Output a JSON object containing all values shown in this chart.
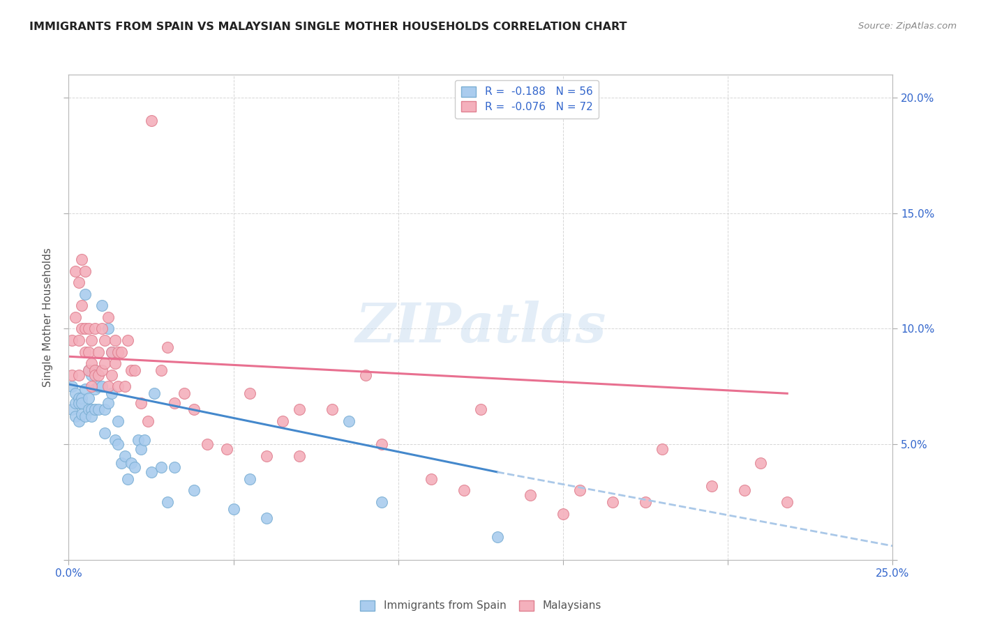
{
  "title": "IMMIGRANTS FROM SPAIN VS MALAYSIAN SINGLE MOTHER HOUSEHOLDS CORRELATION CHART",
  "source": "Source: ZipAtlas.com",
  "ylabel": "Single Mother Households",
  "xlim": [
    0.0,
    0.25
  ],
  "ylim": [
    0.0,
    0.21
  ],
  "ytick_values": [
    0.0,
    0.05,
    0.1,
    0.15,
    0.2
  ],
  "xtick_values": [
    0.0,
    0.05,
    0.1,
    0.15,
    0.2,
    0.25
  ],
  "legend_label_spain": "R =  -0.188   N = 56",
  "legend_label_malaysia": "R =  -0.076   N = 72",
  "bottom_label_spain": "Immigrants from Spain",
  "bottom_label_malaysia": "Malaysians",
  "watermark_text": "ZIPatlas",
  "background_color": "#ffffff",
  "grid_color": "#cccccc",
  "spain_scatter_color": "#7bafd4",
  "spain_scatter_fill": "#aaccee",
  "malaysia_scatter_color": "#e08090",
  "malaysia_scatter_fill": "#f4b0bc",
  "spain_line_color": "#4488cc",
  "malaysia_line_color": "#e87090",
  "dash_line_color": "#aac8e8",
  "spain_x": [
    0.001,
    0.001,
    0.002,
    0.002,
    0.002,
    0.003,
    0.003,
    0.003,
    0.004,
    0.004,
    0.004,
    0.005,
    0.005,
    0.005,
    0.006,
    0.006,
    0.006,
    0.007,
    0.007,
    0.007,
    0.008,
    0.008,
    0.008,
    0.009,
    0.009,
    0.01,
    0.01,
    0.011,
    0.011,
    0.012,
    0.012,
    0.013,
    0.013,
    0.014,
    0.015,
    0.015,
    0.016,
    0.017,
    0.018,
    0.019,
    0.02,
    0.021,
    0.022,
    0.023,
    0.025,
    0.026,
    0.028,
    0.03,
    0.032,
    0.038,
    0.05,
    0.055,
    0.06,
    0.085,
    0.095,
    0.13
  ],
  "spain_y": [
    0.075,
    0.065,
    0.072,
    0.068,
    0.062,
    0.07,
    0.06,
    0.068,
    0.07,
    0.063,
    0.068,
    0.115,
    0.074,
    0.062,
    0.082,
    0.065,
    0.07,
    0.08,
    0.065,
    0.062,
    0.082,
    0.074,
    0.065,
    0.075,
    0.065,
    0.11,
    0.075,
    0.065,
    0.055,
    0.1,
    0.068,
    0.09,
    0.072,
    0.052,
    0.06,
    0.05,
    0.042,
    0.045,
    0.035,
    0.042,
    0.04,
    0.052,
    0.048,
    0.052,
    0.038,
    0.072,
    0.04,
    0.025,
    0.04,
    0.03,
    0.022,
    0.035,
    0.018,
    0.06,
    0.025,
    0.01
  ],
  "malaysia_x": [
    0.001,
    0.001,
    0.002,
    0.002,
    0.003,
    0.003,
    0.003,
    0.004,
    0.004,
    0.004,
    0.005,
    0.005,
    0.005,
    0.006,
    0.006,
    0.006,
    0.007,
    0.007,
    0.007,
    0.008,
    0.008,
    0.008,
    0.009,
    0.009,
    0.01,
    0.01,
    0.011,
    0.011,
    0.012,
    0.012,
    0.013,
    0.013,
    0.014,
    0.014,
    0.015,
    0.015,
    0.016,
    0.017,
    0.018,
    0.019,
    0.02,
    0.022,
    0.024,
    0.025,
    0.028,
    0.03,
    0.032,
    0.035,
    0.038,
    0.042,
    0.048,
    0.055,
    0.06,
    0.065,
    0.07,
    0.08,
    0.09,
    0.11,
    0.125,
    0.14,
    0.155,
    0.165,
    0.18,
    0.195,
    0.21,
    0.218,
    0.205,
    0.175,
    0.15,
    0.12,
    0.095,
    0.07
  ],
  "malaysia_y": [
    0.095,
    0.08,
    0.125,
    0.105,
    0.12,
    0.095,
    0.08,
    0.13,
    0.11,
    0.1,
    0.125,
    0.1,
    0.09,
    0.1,
    0.09,
    0.082,
    0.095,
    0.085,
    0.075,
    0.1,
    0.082,
    0.08,
    0.09,
    0.08,
    0.1,
    0.082,
    0.085,
    0.095,
    0.105,
    0.075,
    0.09,
    0.08,
    0.095,
    0.085,
    0.09,
    0.075,
    0.09,
    0.075,
    0.095,
    0.082,
    0.082,
    0.068,
    0.06,
    0.19,
    0.082,
    0.092,
    0.068,
    0.072,
    0.065,
    0.05,
    0.048,
    0.072,
    0.045,
    0.06,
    0.045,
    0.065,
    0.08,
    0.035,
    0.065,
    0.028,
    0.03,
    0.025,
    0.048,
    0.032,
    0.042,
    0.025,
    0.03,
    0.025,
    0.02,
    0.03,
    0.05,
    0.065
  ],
  "spain_line_x0": 0.0,
  "spain_line_x1": 0.13,
  "spain_line_y0": 0.076,
  "spain_line_y1": 0.038,
  "malaysia_line_x0": 0.0,
  "malaysia_line_x1": 0.218,
  "malaysia_line_y0": 0.088,
  "malaysia_line_y1": 0.072,
  "dash_line_x0": 0.13,
  "dash_line_x1": 0.25,
  "dash_line_y0": 0.038,
  "dash_line_y1": 0.006
}
